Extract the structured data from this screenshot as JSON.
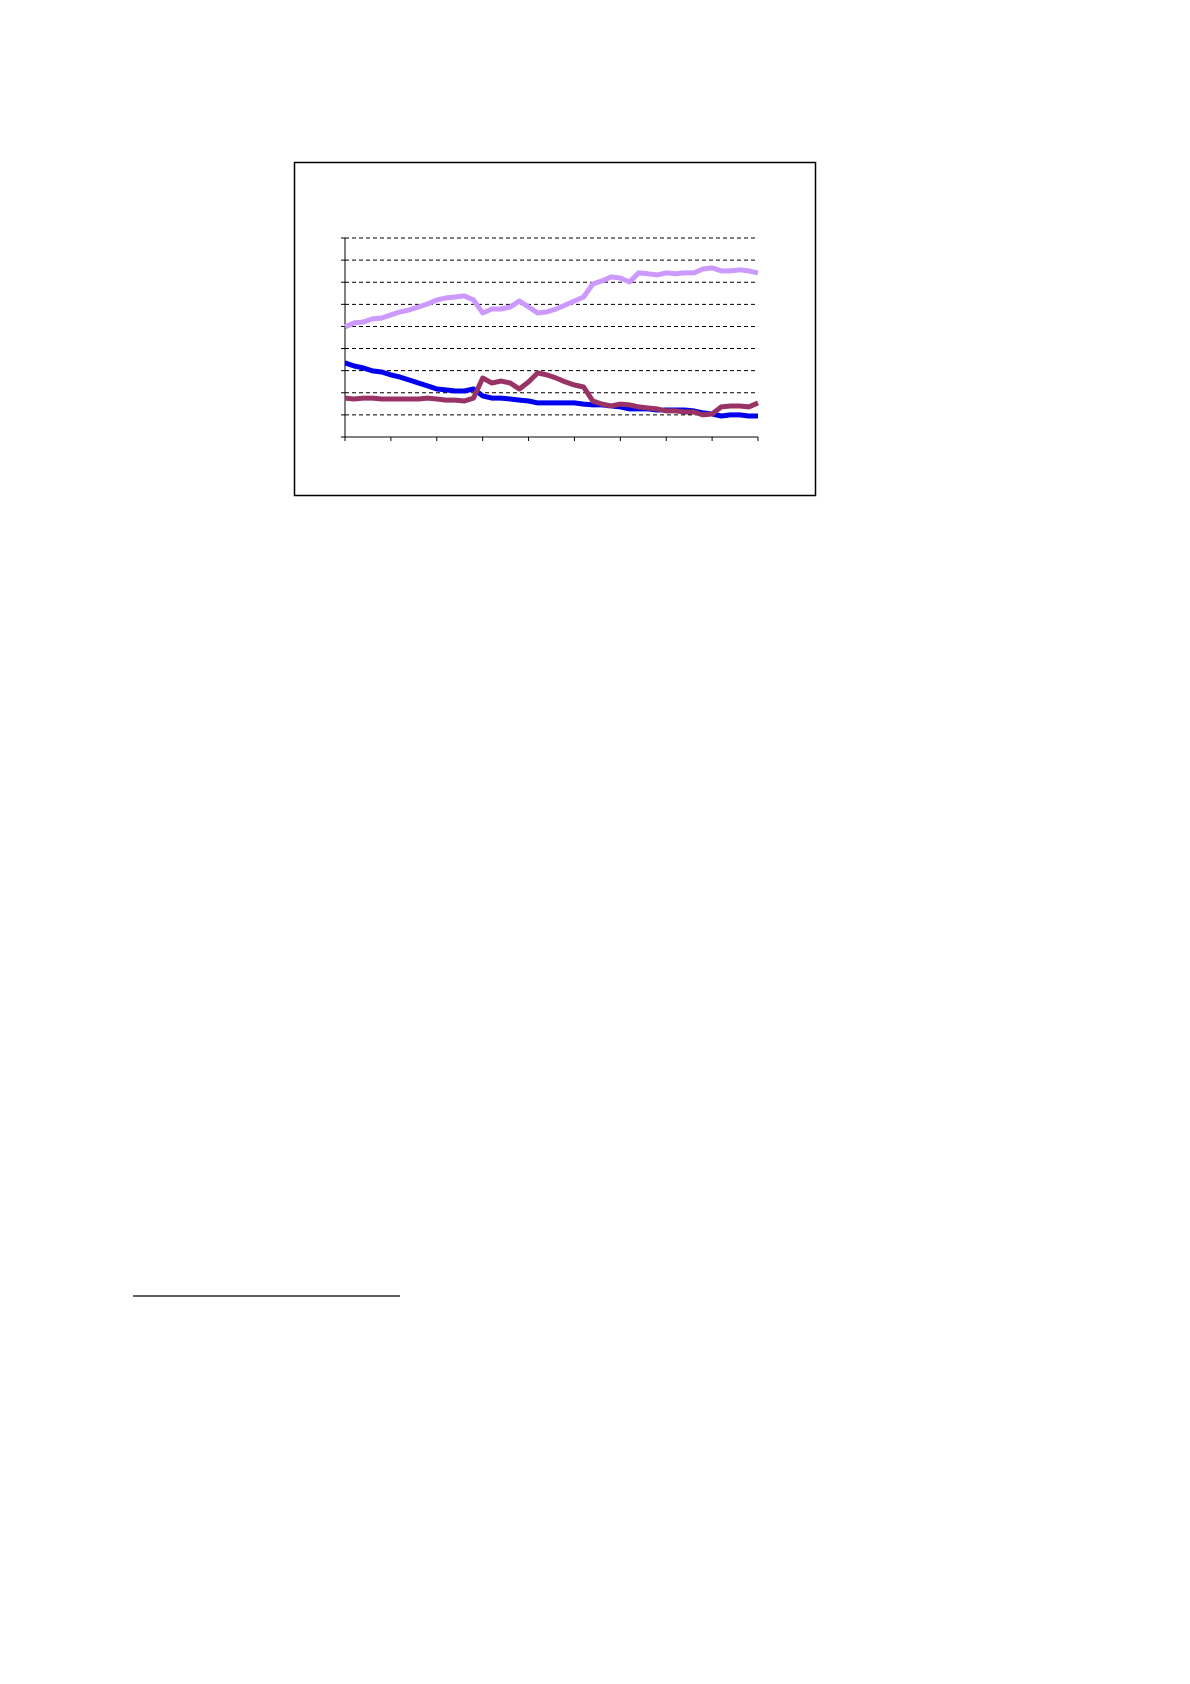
{
  "chart_data": {
    "type": "line",
    "xlim": [
      0,
      45
    ],
    "xticks": [
      0,
      5,
      10,
      15,
      20,
      25,
      30,
      35,
      40,
      45
    ],
    "ylim": [
      0,
      9
    ],
    "yticks": [
      0,
      1,
      2,
      3,
      4,
      5,
      6,
      7,
      8,
      9
    ],
    "grid": true,
    "series": [
      {
        "color": "#cc99ff",
        "values": [
          4.98,
          5.16,
          5.2,
          5.34,
          5.38,
          5.52,
          5.66,
          5.75,
          5.88,
          6.02,
          6.2,
          6.29,
          6.33,
          6.38,
          6.2,
          5.61,
          5.79,
          5.79,
          5.88,
          6.15,
          5.88,
          5.61,
          5.66,
          5.79,
          5.97,
          6.15,
          6.33,
          6.92,
          7.06,
          7.24,
          7.19,
          7.01,
          7.42,
          7.38,
          7.33,
          7.42,
          7.38,
          7.42,
          7.42,
          7.6,
          7.65,
          7.51,
          7.51,
          7.56,
          7.51,
          7.42
        ]
      },
      {
        "color": "#0000ee",
        "values": [
          3.35,
          3.21,
          3.12,
          2.99,
          2.94,
          2.81,
          2.71,
          2.58,
          2.44,
          2.31,
          2.17,
          2.13,
          2.08,
          2.08,
          2.17,
          1.86,
          1.76,
          1.76,
          1.72,
          1.67,
          1.63,
          1.54,
          1.54,
          1.54,
          1.54,
          1.54,
          1.49,
          1.45,
          1.45,
          1.4,
          1.36,
          1.27,
          1.27,
          1.27,
          1.22,
          1.22,
          1.22,
          1.22,
          1.18,
          1.09,
          1.04,
          0.95,
          1.0,
          1.0,
          0.95,
          0.95
        ]
      },
      {
        "color": "#993366",
        "values": [
          1.76,
          1.72,
          1.76,
          1.76,
          1.72,
          1.72,
          1.72,
          1.72,
          1.72,
          1.76,
          1.72,
          1.67,
          1.67,
          1.63,
          1.76,
          2.67,
          2.44,
          2.53,
          2.44,
          2.17,
          2.49,
          2.9,
          2.81,
          2.67,
          2.49,
          2.35,
          2.26,
          1.63,
          1.49,
          1.4,
          1.49,
          1.45,
          1.36,
          1.31,
          1.27,
          1.18,
          1.18,
          1.13,
          1.13,
          1.0,
          1.04,
          1.36,
          1.4,
          1.4,
          1.36,
          1.54
        ]
      }
    ]
  }
}
